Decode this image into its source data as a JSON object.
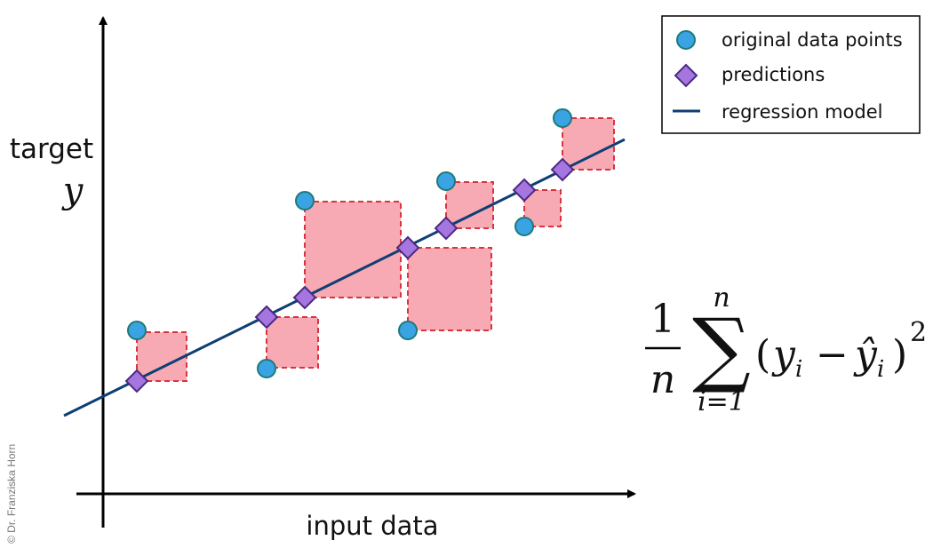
{
  "axes": {
    "y_label": "target",
    "y_symbol": "y",
    "x_label": "input data"
  },
  "legend": {
    "items": [
      {
        "label": "original data points",
        "marker": "circle"
      },
      {
        "label": "predictions",
        "marker": "diamond"
      },
      {
        "label": "regression model",
        "marker": "line"
      }
    ]
  },
  "colors": {
    "data_point_fill": "#3AA3E3",
    "data_point_stroke": "#1E7A7A",
    "prediction_fill": "#A676E0",
    "prediction_stroke": "#4B2A80",
    "line": "#0E3F74",
    "square_fill": "#F7A9B4",
    "square_stroke": "#D9343F"
  },
  "formula": {
    "numerator": "1",
    "denominator": "n",
    "sum_symbol": "∑",
    "upper_limit": "n",
    "lower_limit": "i=1",
    "body_open": "(",
    "y": "y",
    "i": "i",
    "minus": "−",
    "yhat": "ŷ",
    "body_close": ")",
    "exponent": "2"
  },
  "copyright": "© Dr. Franziska Horn"
}
